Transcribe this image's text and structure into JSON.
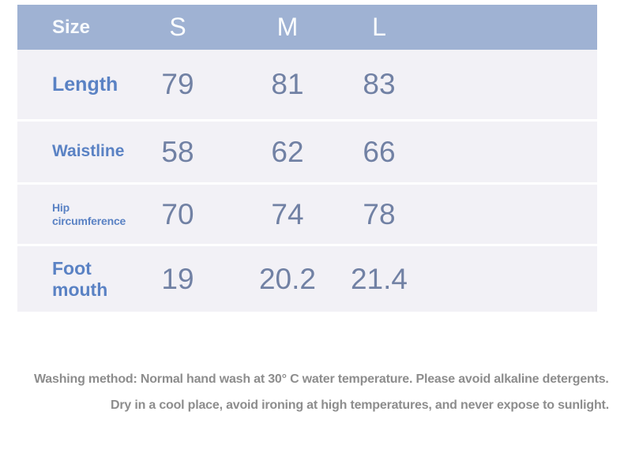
{
  "table": {
    "header": {
      "label": "Size",
      "columns": [
        "S",
        "M",
        "L"
      ]
    },
    "rows": [
      {
        "label": "Length",
        "values": [
          "79",
          "81",
          "83"
        ]
      },
      {
        "label": "Waistline",
        "values": [
          "58",
          "62",
          "66"
        ]
      },
      {
        "label": "Hip circumference",
        "values": [
          "70",
          "74",
          "78"
        ]
      },
      {
        "label": "Foot mouth",
        "values": [
          "19",
          "20.2",
          "21.4"
        ]
      }
    ]
  },
  "care_instructions": {
    "line1": "Washing method: Normal hand wash at 30° C water temperature. Please avoid alkaline detergents.",
    "line2": "Dry in a cool place, avoid ironing at high temperatures, and never expose to sunlight."
  },
  "colors": {
    "header_bg": "#9fb2d3",
    "header_text": "#ffffff",
    "body_bg": "#f2f1f6",
    "row_separator": "#ffffff",
    "label_text": "#5a82c4",
    "value_text": "#7181a4",
    "instructions_text": "#8d8d8d",
    "page_bg": "#ffffff"
  }
}
